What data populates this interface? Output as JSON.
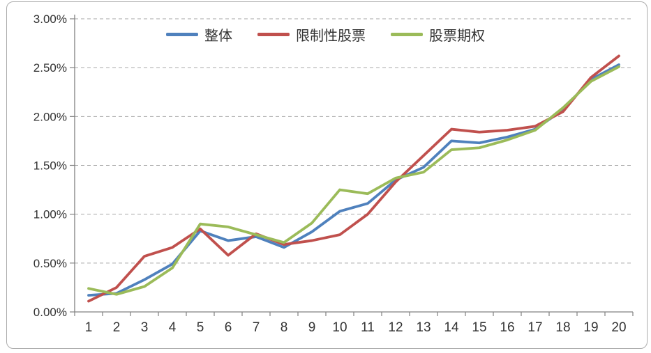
{
  "frame": {
    "background": "#ffffff",
    "border_color": "#acacac"
  },
  "colors": {
    "grid": "#a6a6a6",
    "axis": "#808080",
    "label": "#333333"
  },
  "chart_data": {
    "type": "line",
    "title": "",
    "xlabel": "",
    "ylabel": "",
    "legend_position": "top-center",
    "grid": "dashed-horizontal",
    "x_labels": [
      "1",
      "2",
      "3",
      "4",
      "5",
      "6",
      "7",
      "8",
      "9",
      "10",
      "11",
      "12",
      "13",
      "14",
      "15",
      "16",
      "17",
      "18",
      "19",
      "20"
    ],
    "y_axis": {
      "min": 0,
      "max": 3.0,
      "step": 0.5,
      "unit": "%",
      "tick_labels": [
        "0.00%",
        "0.50%",
        "1.00%",
        "1.50%",
        "2.00%",
        "2.50%",
        "3.00%"
      ]
    },
    "series": [
      {
        "id": "overall",
        "name": "整体",
        "color": "#4F81BD",
        "values": [
          0.17,
          0.19,
          0.33,
          0.49,
          0.83,
          0.73,
          0.77,
          0.66,
          0.82,
          1.03,
          1.11,
          1.35,
          1.48,
          1.75,
          1.73,
          1.79,
          1.87,
          2.07,
          2.38,
          2.53
        ]
      },
      {
        "id": "restricted-stock",
        "name": "限制性股票",
        "color": "#C0504D",
        "values": [
          0.11,
          0.25,
          0.57,
          0.66,
          0.85,
          0.58,
          0.8,
          0.69,
          0.73,
          0.79,
          1.0,
          1.33,
          1.6,
          1.87,
          1.84,
          1.86,
          1.9,
          2.05,
          2.4,
          2.62
        ]
      },
      {
        "id": "stock-option",
        "name": "股票期权",
        "color": "#9BBB59",
        "values": [
          0.24,
          0.18,
          0.26,
          0.45,
          0.9,
          0.87,
          0.79,
          0.71,
          0.91,
          1.25,
          1.21,
          1.37,
          1.43,
          1.66,
          1.68,
          1.76,
          1.86,
          2.09,
          2.36,
          2.51
        ]
      }
    ]
  }
}
